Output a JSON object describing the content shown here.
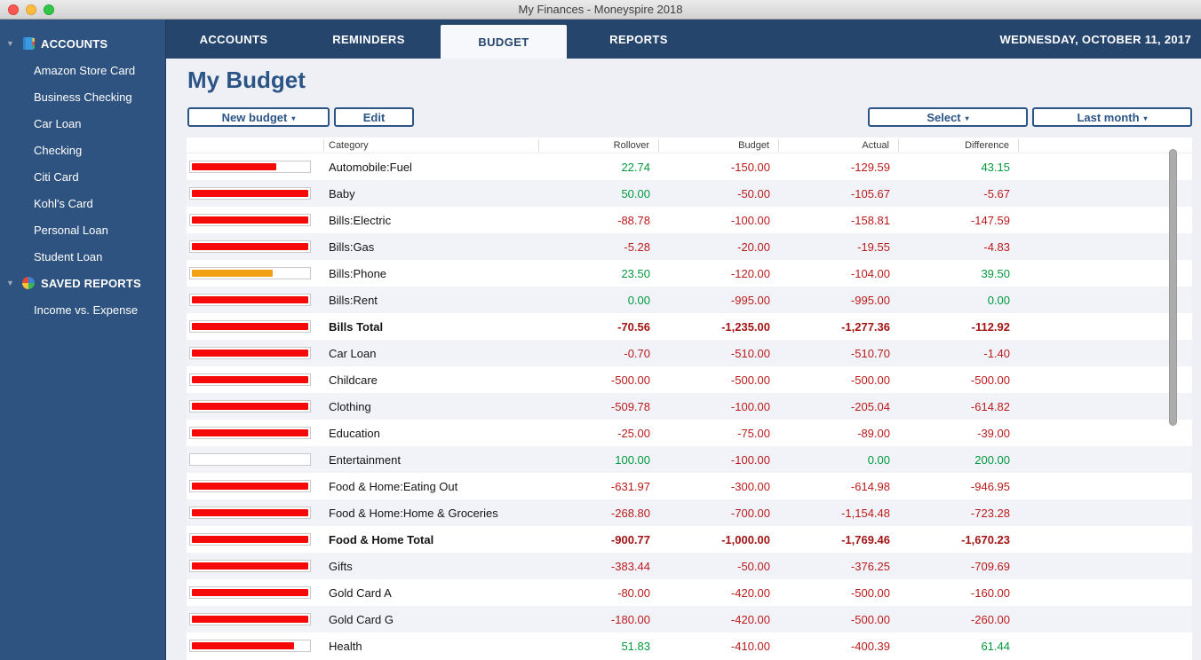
{
  "window": {
    "title": "My Finances - Moneyspire 2018"
  },
  "sidebar": {
    "sections": [
      {
        "label": "ACCOUNTS",
        "icon": "ledger-icon",
        "items": [
          "Amazon Store Card",
          "Business Checking",
          "Car Loan",
          "Checking",
          "Citi Card",
          "Kohl's Card",
          "Personal Loan",
          "Student Loan"
        ]
      },
      {
        "label": "SAVED REPORTS",
        "icon": "pie-chart-icon",
        "items": [
          "Income vs. Expense"
        ]
      }
    ]
  },
  "nav": {
    "tabs": [
      {
        "label": "ACCOUNTS",
        "active": false
      },
      {
        "label": "REMINDERS",
        "active": false
      },
      {
        "label": "BUDGET",
        "active": true
      },
      {
        "label": "REPORTS",
        "active": false
      }
    ],
    "date": "WEDNESDAY, OCTOBER 11, 2017"
  },
  "page": {
    "title": "My Budget"
  },
  "toolbar": {
    "new_budget_label": "New budget",
    "edit_label": "Edit",
    "select_label": "Select",
    "period_label": "Last month",
    "dropdown_caret": "▾"
  },
  "colors": {
    "accent_navy": "#2b5587",
    "positive_green": "#009a3d",
    "negative_red": "#bb1b1b",
    "bar_red": "#f60909",
    "bar_orange": "#f2a115"
  },
  "table": {
    "columns": [
      "Category",
      "Rollover",
      "Budget",
      "Actual",
      "Difference"
    ],
    "rows": [
      {
        "category": "Automobile:Fuel",
        "rollover": "22.74",
        "budget": "-150.00",
        "actual": "-129.59",
        "difference": "43.15",
        "bar_pct": 73,
        "bar_color": "#f60909",
        "bold": false
      },
      {
        "category": "Baby",
        "rollover": "50.00",
        "budget": "-50.00",
        "actual": "-105.67",
        "difference": "-5.67",
        "bar_pct": 100,
        "bar_color": "#f60909",
        "bold": false
      },
      {
        "category": "Bills:Electric",
        "rollover": "-88.78",
        "budget": "-100.00",
        "actual": "-158.81",
        "difference": "-147.59",
        "bar_pct": 100,
        "bar_color": "#f60909",
        "bold": false
      },
      {
        "category": "Bills:Gas",
        "rollover": "-5.28",
        "budget": "-20.00",
        "actual": "-19.55",
        "difference": "-4.83",
        "bar_pct": 100,
        "bar_color": "#f60909",
        "bold": false
      },
      {
        "category": "Bills:Phone",
        "rollover": "23.50",
        "budget": "-120.00",
        "actual": "-104.00",
        "difference": "39.50",
        "bar_pct": 70,
        "bar_color": "#f2a115",
        "bold": false
      },
      {
        "category": "Bills:Rent",
        "rollover": "0.00",
        "budget": "-995.00",
        "actual": "-995.00",
        "difference": "0.00",
        "bar_pct": 100,
        "bar_color": "#f60909",
        "bold": false
      },
      {
        "category": "Bills Total",
        "rollover": "-70.56",
        "budget": "-1,235.00",
        "actual": "-1,277.36",
        "difference": "-112.92",
        "bar_pct": 100,
        "bar_color": "#f60909",
        "bold": true
      },
      {
        "category": "Car Loan",
        "rollover": "-0.70",
        "budget": "-510.00",
        "actual": "-510.70",
        "difference": "-1.40",
        "bar_pct": 100,
        "bar_color": "#f60909",
        "bold": false
      },
      {
        "category": "Childcare",
        "rollover": "-500.00",
        "budget": "-500.00",
        "actual": "-500.00",
        "difference": "-500.00",
        "bar_pct": 100,
        "bar_color": "#f60909",
        "bold": false
      },
      {
        "category": "Clothing",
        "rollover": "-509.78",
        "budget": "-100.00",
        "actual": "-205.04",
        "difference": "-614.82",
        "bar_pct": 100,
        "bar_color": "#f60909",
        "bold": false
      },
      {
        "category": "Education",
        "rollover": "-25.00",
        "budget": "-75.00",
        "actual": "-89.00",
        "difference": "-39.00",
        "bar_pct": 100,
        "bar_color": "#f60909",
        "bold": false
      },
      {
        "category": "Entertainment",
        "rollover": "100.00",
        "budget": "-100.00",
        "actual": "0.00",
        "difference": "200.00",
        "bar_pct": 0,
        "bar_color": "#f60909",
        "bold": false
      },
      {
        "category": "Food & Home:Eating Out",
        "rollover": "-631.97",
        "budget": "-300.00",
        "actual": "-614.98",
        "difference": "-946.95",
        "bar_pct": 100,
        "bar_color": "#f60909",
        "bold": false
      },
      {
        "category": "Food & Home:Home & Groceries",
        "rollover": "-268.80",
        "budget": "-700.00",
        "actual": "-1,154.48",
        "difference": "-723.28",
        "bar_pct": 100,
        "bar_color": "#f60909",
        "bold": false
      },
      {
        "category": "Food & Home Total",
        "rollover": "-900.77",
        "budget": "-1,000.00",
        "actual": "-1,769.46",
        "difference": "-1,670.23",
        "bar_pct": 100,
        "bar_color": "#f60909",
        "bold": true
      },
      {
        "category": "Gifts",
        "rollover": "-383.44",
        "budget": "-50.00",
        "actual": "-376.25",
        "difference": "-709.69",
        "bar_pct": 100,
        "bar_color": "#f60909",
        "bold": false
      },
      {
        "category": "Gold Card A",
        "rollover": "-80.00",
        "budget": "-420.00",
        "actual": "-500.00",
        "difference": "-160.00",
        "bar_pct": 100,
        "bar_color": "#f60909",
        "bold": false
      },
      {
        "category": "Gold Card G",
        "rollover": "-180.00",
        "budget": "-420.00",
        "actual": "-500.00",
        "difference": "-260.00",
        "bar_pct": 100,
        "bar_color": "#f60909",
        "bold": false
      },
      {
        "category": "Health",
        "rollover": "51.83",
        "budget": "-410.00",
        "actual": "-400.39",
        "difference": "61.44",
        "bar_pct": 88,
        "bar_color": "#f60909",
        "bold": false
      }
    ]
  }
}
